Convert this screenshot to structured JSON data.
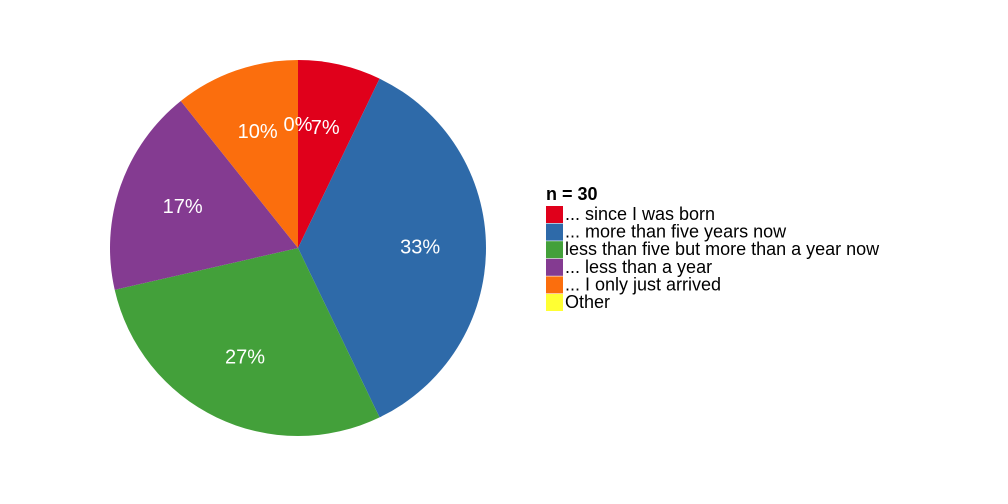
{
  "chart_data": {
    "type": "pie",
    "legend_title": "n = 30",
    "legend_position": "right",
    "categories": [
      "... since I was born",
      "... more than five years now",
      "less than five but more than a year now",
      "... less than a year",
      "... I only just arrived",
      "Other"
    ],
    "values": [
      2,
      10,
      8,
      5,
      3,
      0
    ],
    "labels": [
      "7%",
      "33%",
      "27%",
      "17%",
      "10%",
      "0%"
    ],
    "colors": [
      "#e0001b",
      "#2e6aa9",
      "#43a03a",
      "#843b91",
      "#fb6e0d",
      "#ffff33"
    ]
  }
}
